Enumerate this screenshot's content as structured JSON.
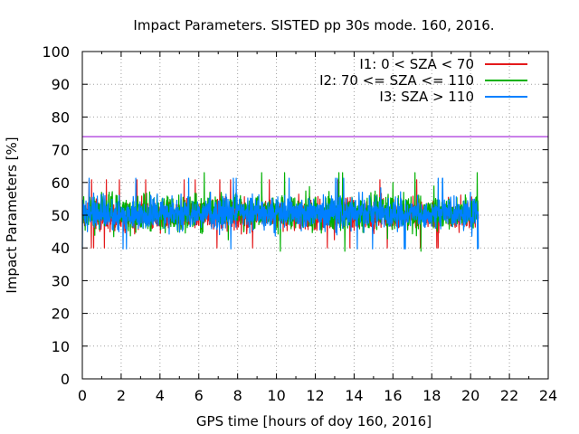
{
  "chart_data": {
    "type": "line",
    "title": "Impact Parameters. SISTED pp 30s mode. 160, 2016.",
    "xlabel": "GPS time [hours of doy 160, 2016]",
    "ylabel": "Impact Parameters [%]",
    "xlim": [
      0,
      24
    ],
    "ylim": [
      0,
      100
    ],
    "xticks": [
      0,
      2,
      4,
      6,
      8,
      10,
      12,
      14,
      16,
      18,
      20,
      22,
      24
    ],
    "yticks": [
      0,
      10,
      20,
      30,
      40,
      50,
      60,
      70,
      80,
      90,
      100
    ],
    "grid": true,
    "legend_position": "top-right",
    "threshold": {
      "value": 74,
      "color": "#9400d3"
    },
    "series": [
      {
        "name": "I1: 0 < SZA < 70",
        "color": "#e41a1c",
        "x_range": [
          0,
          20.4
        ],
        "mean": 50,
        "spread": 4.5,
        "min": 40,
        "max": 61
      },
      {
        "name": "I2: 70 <= SZA <= 110",
        "color": "#00b000",
        "x_range": [
          0,
          20.4
        ],
        "mean": 51,
        "spread": 5,
        "min": 39,
        "max": 63
      },
      {
        "name": "I3: SZA > 110",
        "color": "#0080ff",
        "x_range": [
          0,
          20.4
        ],
        "mean": 50.5,
        "spread": 4.5,
        "min": 37,
        "max": 64
      }
    ]
  }
}
